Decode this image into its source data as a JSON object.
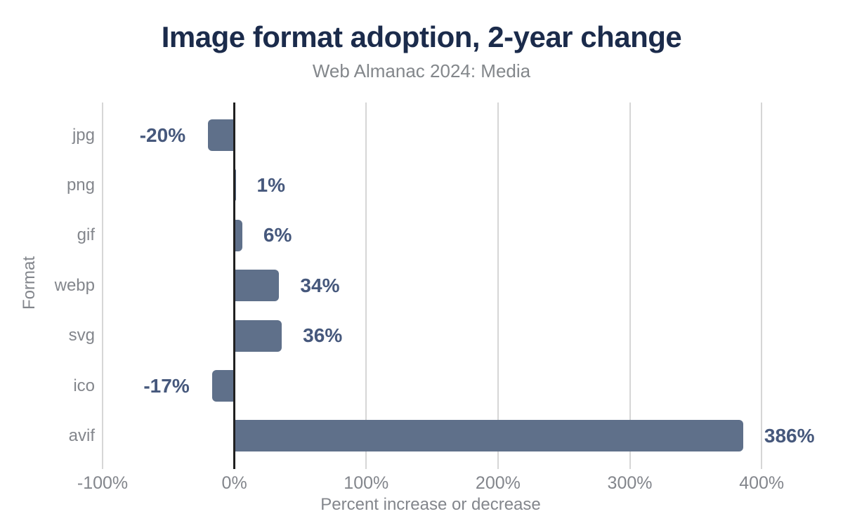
{
  "chart_data": {
    "type": "bar",
    "orientation": "horizontal",
    "title": "Image format adoption, 2-year change",
    "subtitle": "Web Almanac 2024: Media",
    "xlabel": "Percent increase or decrease",
    "ylabel": "Format",
    "categories": [
      "jpg",
      "png",
      "gif",
      "webp",
      "svg",
      "ico",
      "avif"
    ],
    "values": [
      -20,
      1,
      6,
      34,
      36,
      -17,
      386
    ],
    "value_labels": [
      "-20%",
      "1%",
      "6%",
      "34%",
      "36%",
      "-17%",
      "386%"
    ],
    "xlim": [
      -100,
      450
    ],
    "xticks": [
      -100,
      0,
      100,
      200,
      300,
      400
    ],
    "xtick_labels": [
      "-100%",
      "0%",
      "100%",
      "200%",
      "300%",
      "400%"
    ],
    "grid": true,
    "legend": "none",
    "colors": {
      "bar": "#5f708a",
      "value_label": "#46587c",
      "title": "#1b2b4b",
      "subtitle": "#83878b",
      "axis_text": "#83868c",
      "gridline": "#d6d6d6",
      "zero_axis": "#202020",
      "background": "#ffffff"
    }
  }
}
